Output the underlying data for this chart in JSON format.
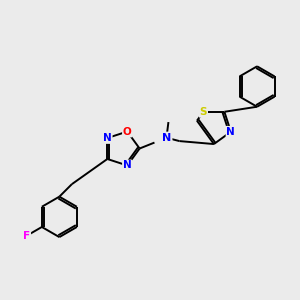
{
  "background_color": "#ebebeb",
  "bond_color": "#000000",
  "atom_colors": {
    "N": "#0000ff",
    "O": "#ff0000",
    "S": "#cccc00",
    "F": "#ff00ff",
    "C": "#000000"
  },
  "figsize": [
    3.0,
    3.0
  ],
  "dpi": 100,
  "lw": 1.4
}
